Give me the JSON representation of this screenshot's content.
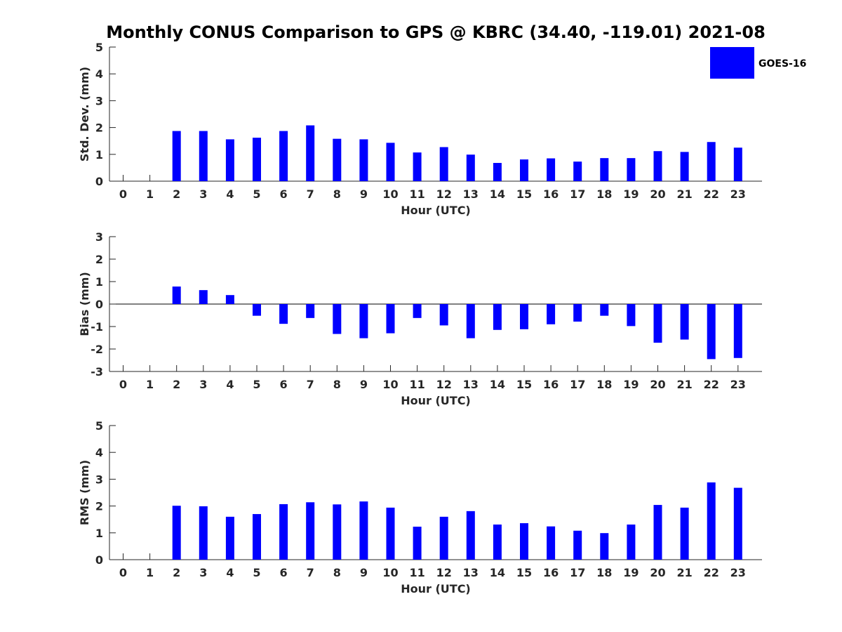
{
  "title": "Monthly CONUS Comparison to GPS @ KBRC (34.40, -119.01) 2021-08",
  "legend": {
    "label": "GOES-16",
    "color": "#0000ff",
    "placement": "top-right"
  },
  "bar_color": "#0000ff",
  "chart_data": [
    {
      "type": "bar",
      "xlabel": "Hour (UTC)",
      "ylabel": "Std. Dev. (mm)",
      "ylim": [
        0,
        5
      ],
      "yticks": [
        0,
        1,
        2,
        3,
        4,
        5
      ],
      "categories": [
        "0",
        "1",
        "2",
        "3",
        "4",
        "5",
        "6",
        "7",
        "8",
        "9",
        "10",
        "11",
        "12",
        "13",
        "14",
        "15",
        "16",
        "17",
        "18",
        "19",
        "20",
        "21",
        "22",
        "23"
      ],
      "series": [
        {
          "name": "GOES-16",
          "values": [
            null,
            null,
            1.87,
            1.87,
            1.56,
            1.62,
            1.87,
            2.08,
            1.58,
            1.56,
            1.43,
            1.07,
            1.27,
            0.99,
            0.68,
            0.81,
            0.85,
            0.73,
            0.86,
            0.86,
            1.12,
            1.09,
            1.46,
            1.25
          ]
        }
      ],
      "grid": false
    },
    {
      "type": "bar",
      "xlabel": "Hour (UTC)",
      "ylabel": "Bias (mm)",
      "ylim": [
        -3,
        3
      ],
      "yticks": [
        -3,
        -2,
        -1,
        0,
        1,
        2,
        3
      ],
      "categories": [
        "0",
        "1",
        "2",
        "3",
        "4",
        "5",
        "6",
        "7",
        "8",
        "9",
        "10",
        "11",
        "12",
        "13",
        "14",
        "15",
        "16",
        "17",
        "18",
        "19",
        "20",
        "21",
        "22",
        "23"
      ],
      "series": [
        {
          "name": "GOES-16",
          "values": [
            null,
            null,
            0.78,
            0.62,
            0.4,
            -0.52,
            -0.88,
            -0.62,
            -1.33,
            -1.52,
            -1.3,
            -0.62,
            -0.95,
            -1.52,
            -1.15,
            -1.12,
            -0.9,
            -0.78,
            -0.52,
            -0.98,
            -1.72,
            -1.58,
            -2.45,
            -2.4
          ]
        }
      ],
      "grid": false
    },
    {
      "type": "bar",
      "xlabel": "Hour (UTC)",
      "ylabel": "RMS (mm)",
      "ylim": [
        0,
        5
      ],
      "yticks": [
        0,
        1,
        2,
        3,
        4,
        5
      ],
      "categories": [
        "0",
        "1",
        "2",
        "3",
        "4",
        "5",
        "6",
        "7",
        "8",
        "9",
        "10",
        "11",
        "12",
        "13",
        "14",
        "15",
        "16",
        "17",
        "18",
        "19",
        "20",
        "21",
        "22",
        "23"
      ],
      "series": [
        {
          "name": "GOES-16",
          "values": [
            null,
            null,
            2.01,
            1.99,
            1.6,
            1.7,
            2.07,
            2.14,
            2.06,
            2.17,
            1.94,
            1.23,
            1.6,
            1.81,
            1.31,
            1.36,
            1.24,
            1.08,
            0.99,
            1.31,
            2.04,
            1.94,
            2.88,
            2.68
          ]
        }
      ],
      "grid": false
    }
  ]
}
